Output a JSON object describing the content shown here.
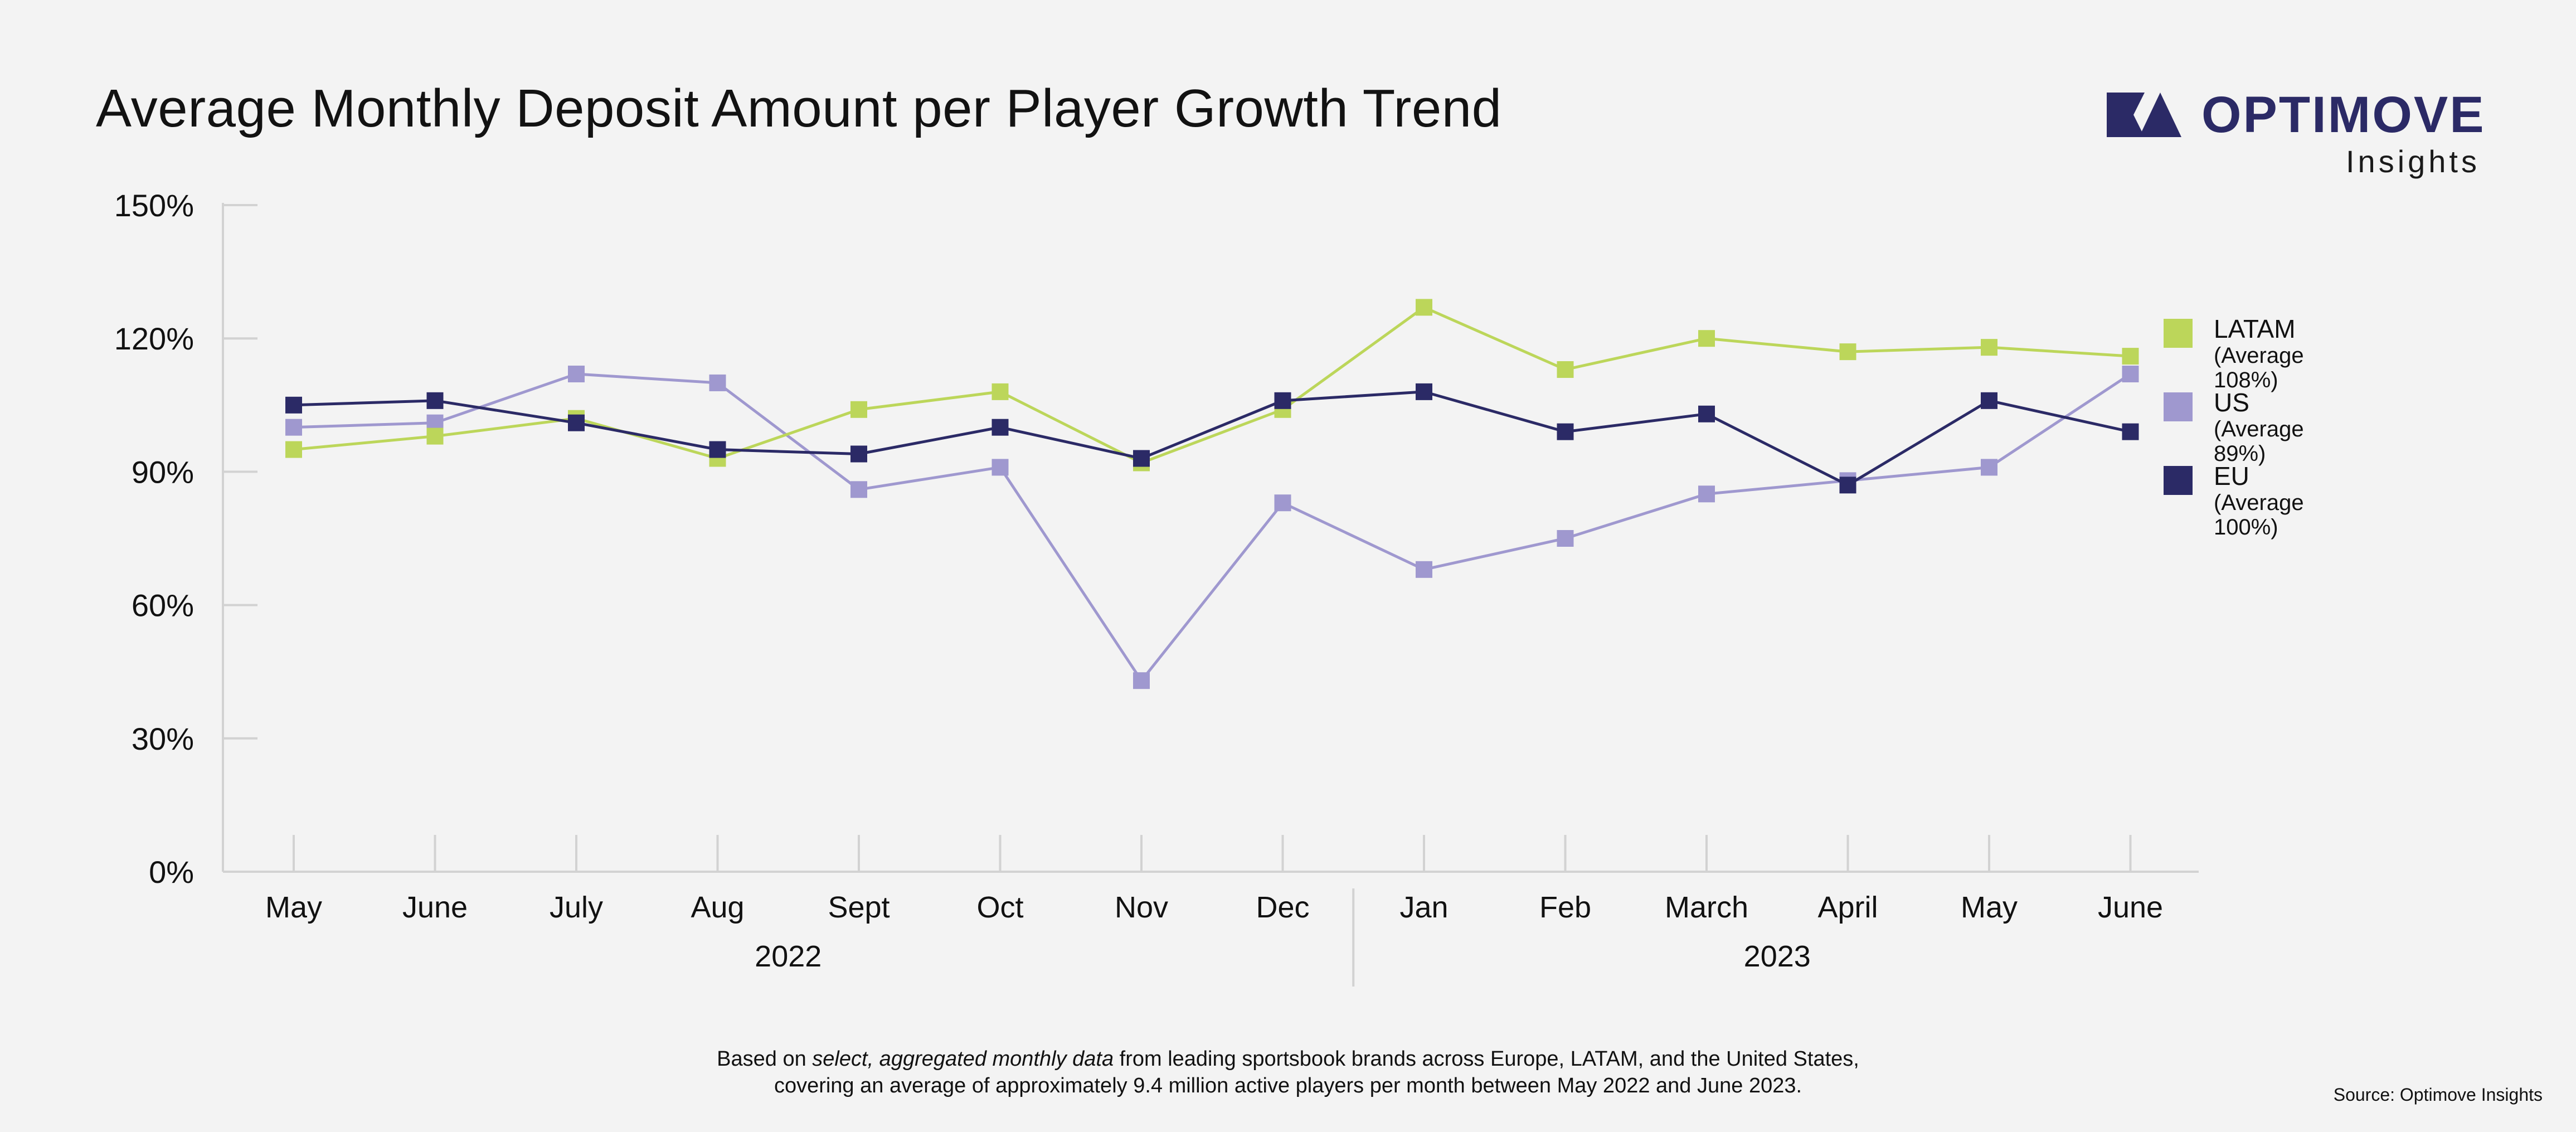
{
  "header": {
    "title": "Average Monthly Deposit Amount per Player Growth Trend",
    "brand": "OPTIMOVE",
    "brand_sub": "Insights"
  },
  "colors": {
    "latam": "#bcd65a",
    "us": "#9f98cf",
    "eu": "#2b2a66",
    "brand": "#2b2a66",
    "axis": "#d2d2d2"
  },
  "legend": [
    {
      "key": "latam",
      "name": "LATAM",
      "avg": "(Average 108%)"
    },
    {
      "key": "us",
      "name": "US",
      "avg": "(Average 89%)"
    },
    {
      "key": "eu",
      "name": "EU",
      "avg": "(Average 100%)"
    }
  ],
  "chart_data": {
    "type": "line",
    "title": "Average Monthly Deposit Amount per Player Growth Trend",
    "categories": [
      "May",
      "June",
      "July",
      "Aug",
      "Sept",
      "Oct",
      "Nov",
      "Dec",
      "Jan",
      "Feb",
      "March",
      "April",
      "May",
      "June"
    ],
    "year_groups": [
      {
        "label": "2022",
        "start": 0,
        "end": 7
      },
      {
        "label": "2023",
        "start": 8,
        "end": 13
      }
    ],
    "ylim": [
      0,
      150
    ],
    "yticks": [
      0,
      30,
      60,
      90,
      120,
      150
    ],
    "ytick_labels": [
      "0%",
      "30%",
      "60%",
      "90%",
      "120%",
      "150%"
    ],
    "series": [
      {
        "name": "LATAM",
        "key": "latam",
        "values": [
          95,
          98,
          102,
          93,
          104,
          108,
          92,
          104,
          127,
          113,
          120,
          117,
          118,
          116
        ]
      },
      {
        "name": "US",
        "key": "us",
        "values": [
          100,
          101,
          112,
          110,
          86,
          91,
          43,
          83,
          68,
          75,
          85,
          88,
          91,
          112
        ]
      },
      {
        "name": "EU",
        "key": "eu",
        "values": [
          105,
          106,
          101,
          95,
          94,
          100,
          93,
          106,
          108,
          99,
          103,
          87,
          106,
          99
        ]
      }
    ]
  },
  "footnote": {
    "line1_pre": "Based on ",
    "line1_em": "select, aggregated monthly data",
    "line1_post": " from leading sportsbook brands across Europe, LATAM, and the United States,",
    "line2": "covering an average of approximately 9.4 million active players per month between May 2022 and June 2023."
  },
  "source": "Source: Optimove Insights"
}
